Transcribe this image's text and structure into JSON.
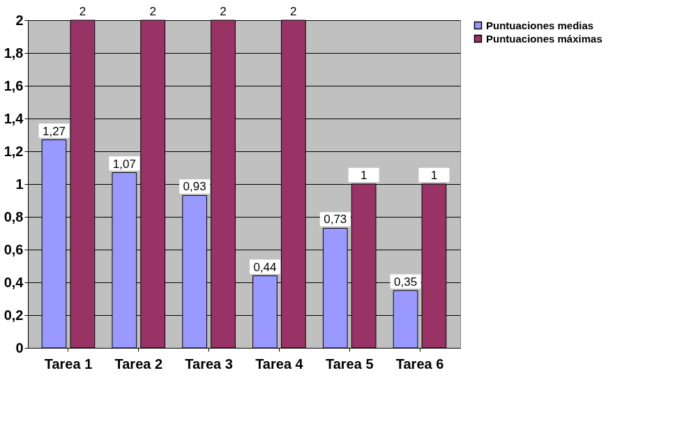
{
  "chart_data": {
    "type": "bar",
    "categories": [
      "Tarea 1",
      "Tarea 2",
      "Tarea 3",
      "Tarea 4",
      "Tarea 5",
      "Tarea 6"
    ],
    "series": [
      {
        "name": "Puntuaciones medias",
        "color": "#9999ff",
        "values": [
          1.27,
          1.07,
          0.93,
          0.44,
          0.73,
          0.35
        ],
        "value_labels": [
          "1,27",
          "1,07",
          "0,93",
          "0,44",
          "0,73",
          "0,35"
        ]
      },
      {
        "name": "Puntuaciones máximas",
        "color": "#993366",
        "values": [
          2,
          2,
          2,
          2,
          1,
          1
        ],
        "value_labels": [
          "2",
          "2",
          "2",
          "2",
          "1",
          "1"
        ]
      }
    ],
    "ylim": [
      0,
      2
    ],
    "yticks": [
      0,
      {
        "value": 0.2,
        "label": "0,2"
      },
      {
        "value": 0.4,
        "label": "0,4"
      },
      {
        "value": 0.6,
        "label": "0,6"
      },
      {
        "value": 0.8,
        "label": "0,8"
      },
      1,
      {
        "value": 1.2,
        "label": "1,2"
      },
      {
        "value": 1.4,
        "label": "1,4"
      },
      {
        "value": 1.6,
        "label": "1,6"
      },
      {
        "value": 1.8,
        "label": "1,8"
      },
      2
    ],
    "grid": "y",
    "legend": "right"
  }
}
